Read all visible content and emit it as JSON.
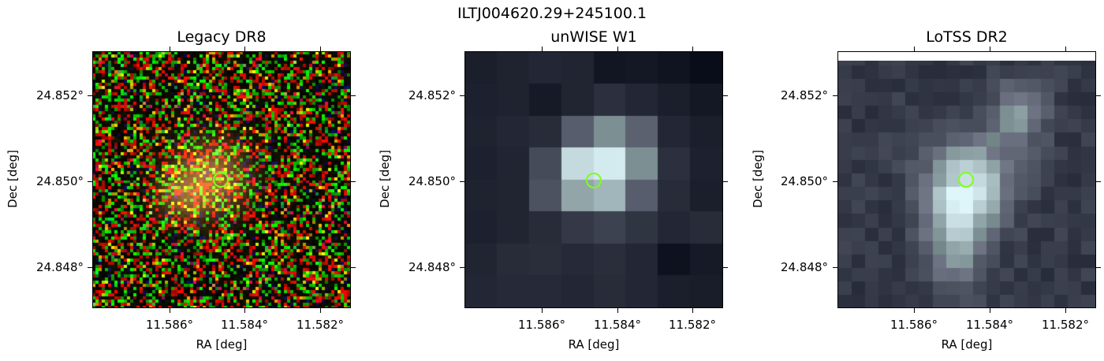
{
  "figure": {
    "title": "ILTJ004620.29+245100.1",
    "marker_color": "#7dff1a"
  },
  "panels": [
    {
      "id": "legacy",
      "title": "Legacy DR8",
      "xlabel": "RA [deg]",
      "ylabel": "Dec [deg]",
      "xticks": [
        "11.586°",
        "11.584°",
        "11.582°"
      ],
      "yticks": [
        "24.852°",
        "24.850°",
        "24.848°"
      ],
      "colormap": "rgb-noise"
    },
    {
      "id": "unwise",
      "title": "unWISE W1",
      "xlabel": "RA [deg]",
      "ylabel": "Dec [deg]",
      "xticks": [
        "11.586°",
        "11.584°",
        "11.582°"
      ],
      "yticks": [
        "24.852°",
        "24.850°",
        "24.848°"
      ],
      "colormap": "bone"
    },
    {
      "id": "lotss",
      "title": "LoTSS DR2",
      "xlabel": "RA [deg]",
      "ylabel": "Dec [deg]",
      "xticks": [
        "11.586°",
        "11.584°",
        "11.582°"
      ],
      "yticks": [
        "24.852°",
        "24.850°",
        "24.848°"
      ],
      "colormap": "bone"
    }
  ]
}
